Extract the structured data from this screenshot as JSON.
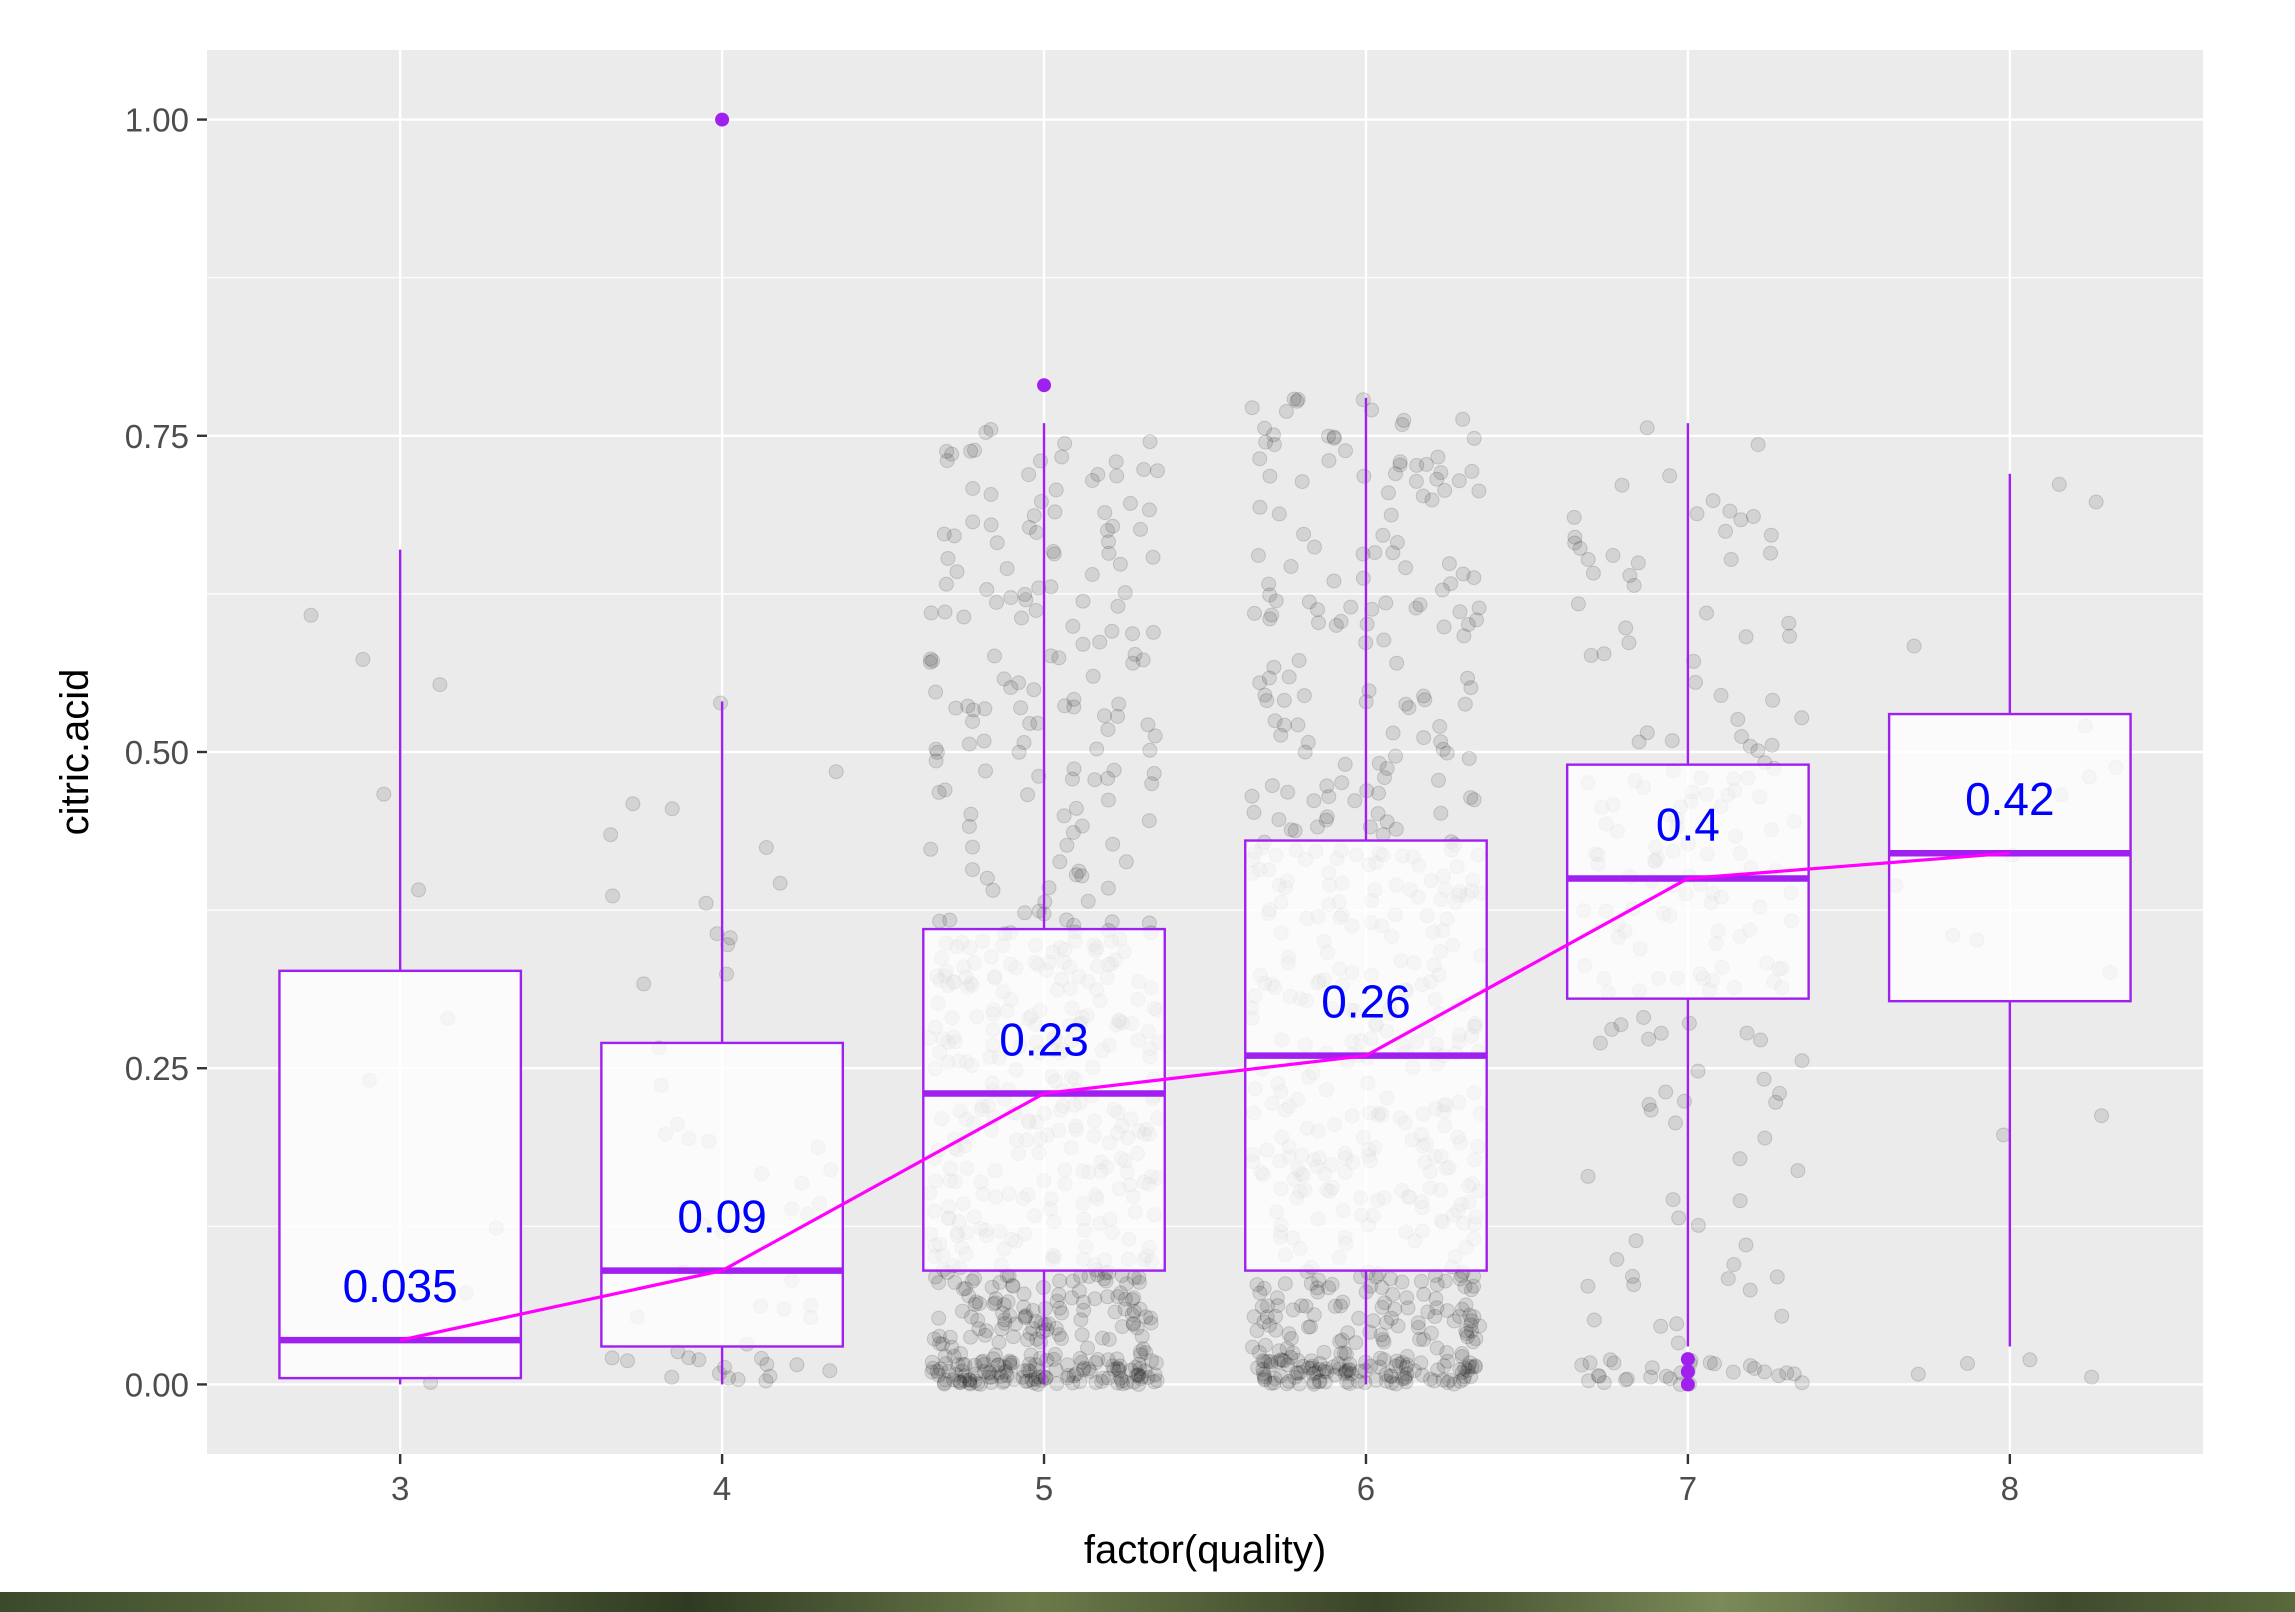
{
  "chart_data": {
    "type": "boxplot",
    "xlabel": "factor(quality)",
    "ylabel": "citric.acid",
    "categories": [
      "3",
      "4",
      "5",
      "6",
      "7",
      "8"
    ],
    "ylim": [
      -0.055,
      1.055
    ],
    "yticks": [
      0.0,
      0.25,
      0.5,
      0.75,
      1.0
    ],
    "ytick_labels": [
      "0.00",
      "0.25",
      "0.50",
      "0.75",
      "1.00"
    ],
    "grid": true,
    "box_color": "#a020f0",
    "line_color": "#ff00ff",
    "label_color": "#0000ff",
    "jitter_color": "#000000",
    "panel_background": "#ebebeb",
    "boxes": [
      {
        "category": "3",
        "lower_whisker": 0.0,
        "q1": 0.005,
        "median": 0.035,
        "q3": 0.327,
        "upper_whisker": 0.66,
        "outliers": []
      },
      {
        "category": "4",
        "lower_whisker": 0.0,
        "q1": 0.03,
        "median": 0.09,
        "q3": 0.27,
        "upper_whisker": 0.54,
        "outliers": [
          1.0
        ]
      },
      {
        "category": "5",
        "lower_whisker": 0.0,
        "q1": 0.09,
        "median": 0.23,
        "q3": 0.36,
        "upper_whisker": 0.76,
        "outliers": [
          0.79
        ]
      },
      {
        "category": "6",
        "lower_whisker": 0.0,
        "q1": 0.09,
        "median": 0.26,
        "q3": 0.43,
        "upper_whisker": 0.78,
        "outliers": []
      },
      {
        "category": "7",
        "lower_whisker": 0.03,
        "q1": 0.305,
        "median": 0.4,
        "q3": 0.49,
        "upper_whisker": 0.76,
        "outliers": [
          0.0,
          0.01,
          0.02
        ]
      },
      {
        "category": "8",
        "lower_whisker": 0.03,
        "q1": 0.303,
        "median": 0.42,
        "q3": 0.53,
        "upper_whisker": 0.72,
        "outliers": []
      }
    ],
    "median_labels": [
      "0.035",
      "0.09",
      "0.23",
      "0.26",
      "0.4",
      "0.42"
    ],
    "median_line": [
      0.035,
      0.09,
      0.23,
      0.26,
      0.4,
      0.42
    ],
    "jitter_counts": [
      10,
      53,
      681,
      638,
      199,
      18
    ]
  }
}
